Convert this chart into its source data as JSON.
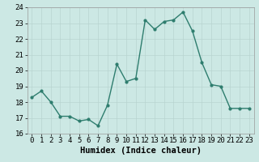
{
  "x": [
    0,
    1,
    2,
    3,
    4,
    5,
    6,
    7,
    8,
    9,
    10,
    11,
    12,
    13,
    14,
    15,
    16,
    17,
    18,
    19,
    20,
    21,
    22,
    23
  ],
  "y": [
    18.3,
    18.7,
    18.0,
    17.1,
    17.1,
    16.8,
    16.9,
    16.5,
    17.8,
    20.4,
    19.3,
    19.5,
    23.2,
    22.6,
    23.1,
    23.2,
    23.7,
    22.5,
    20.5,
    19.1,
    19.0,
    17.6,
    17.6,
    17.6
  ],
  "xlabel": "Humidex (Indice chaleur)",
  "ylabel": "",
  "ylim": [
    16,
    24
  ],
  "xlim": [
    -0.5,
    23.5
  ],
  "yticks": [
    16,
    17,
    18,
    19,
    20,
    21,
    22,
    23,
    24
  ],
  "xticks": [
    0,
    1,
    2,
    3,
    4,
    5,
    6,
    7,
    8,
    9,
    10,
    11,
    12,
    13,
    14,
    15,
    16,
    17,
    18,
    19,
    20,
    21,
    22,
    23
  ],
  "line_color": "#2E7D6E",
  "marker_color": "#2E7D6E",
  "bg_color": "#CCE8E4",
  "grid_color": "#B8D4D0",
  "axis_bg": "#CCE8E4",
  "xlabel_fontsize": 7.5,
  "tick_fontsize": 6.5,
  "linewidth": 1.0,
  "markersize": 2.0
}
